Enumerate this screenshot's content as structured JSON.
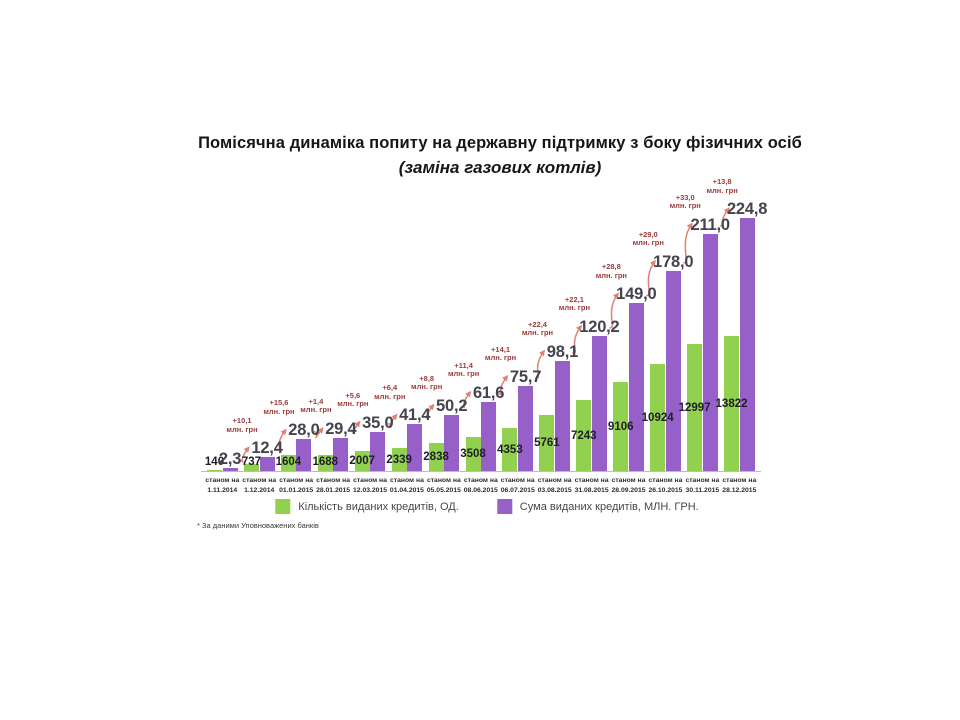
{
  "slide": {
    "title": "Помісячна динаміка попиту на державну підтримку з боку фізичних осіб",
    "subtitle": "(заміна газових котлів)",
    "footnote": "* За даними Уповноважених банків"
  },
  "legend": {
    "count_label": "Кількість виданих кредитів, ОД.",
    "sum_label": "Сума виданих кредитів, МЛН. ГРН."
  },
  "colors": {
    "green": "#92d04f",
    "purple": "#9760c8",
    "increment_text": "#9c3a38",
    "connector": "#dd8273",
    "value_label": "#45444e",
    "axis": "#bdbdbd"
  },
  "chart_data": {
    "type": "bar",
    "title": "Помісячна динаміка попиту на державну підтримку з боку фізичних осіб",
    "subtitle": "(заміна газових котлів)",
    "grid": false,
    "legend_position": "bottom",
    "x_label_prefix": "станом на",
    "categories": [
      "1.11.2014",
      "1.12.2014",
      "01.01.2015",
      "28.01.2015",
      "12.03.2015",
      "01.04.2015",
      "05.05.2015",
      "08.06.2015",
      "06.07.2015",
      "03.08.2015",
      "31.08.2015",
      "28.09.2015",
      "26.10.2015",
      "30.11.2015",
      "28.12.2015"
    ],
    "series": [
      {
        "name": "Кількість виданих кредитів, ОД.",
        "color": "#92d04f",
        "values": [
          140,
          737,
          1604,
          1688,
          2007,
          2339,
          2838,
          3508,
          4353,
          5761,
          7243,
          9106,
          10924,
          12997,
          13822
        ],
        "labels": [
          "140",
          "737",
          "1604",
          "1688",
          "2007",
          "2339",
          "2838",
          "3508",
          "4353",
          "5761",
          "7243",
          "9106",
          "10924",
          "12997",
          "13822"
        ]
      },
      {
        "name": "Сума виданих кредитів, МЛН. ГРН.",
        "color": "#9760c8",
        "values": [
          2.3,
          12.4,
          28.0,
          29.4,
          35.0,
          41.4,
          50.2,
          61.6,
          75.7,
          98.1,
          120.2,
          149.0,
          178.0,
          211.0,
          224.8
        ],
        "labels": [
          "2,3",
          "12,4",
          "28,0",
          "29,4",
          "35,0",
          "41,4",
          "50,2",
          "61,6",
          "75,7",
          "98,1",
          "120,2",
          "149,0",
          "178,0",
          "211,0",
          "224,8"
        ]
      }
    ],
    "increment_unit": "млн. грн",
    "increments": [
      "+10,1",
      "+15,6",
      "+1,4",
      "+5,6",
      "+6,4",
      "+8,8",
      "+11,4",
      "+14,1",
      "+22,4",
      "+22,1",
      "+28,8",
      "+29,0",
      "+33,0",
      "+13,8"
    ],
    "ylim_units": [
      0,
      14000
    ],
    "ylim_mln": [
      0,
      230
    ]
  }
}
